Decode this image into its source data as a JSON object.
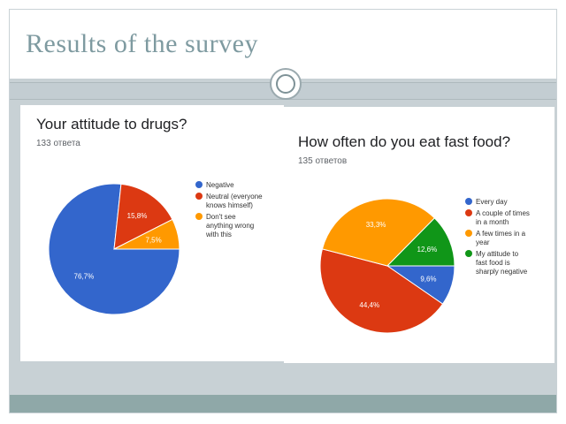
{
  "slide": {
    "title": "Results of the survey"
  },
  "chart_data": [
    {
      "type": "pie",
      "title": "Your attitude to drugs?",
      "subtitle": "133 ответа",
      "categories": [
        "Negative",
        "Neutral (everyone knows himself)",
        "Don't see anything wrong with this"
      ],
      "legend_lines": [
        [
          "Negative"
        ],
        [
          "Neutral (everyone",
          "knows himself)"
        ],
        [
          "Don't see",
          "anything wrong",
          "with this"
        ]
      ],
      "values": [
        76.7,
        15.8,
        7.5
      ],
      "labels": [
        "76,7%",
        "15,8%",
        "7,5%"
      ],
      "colors": [
        "#3366cc",
        "#dc3912",
        "#ff9900"
      ],
      "legend": "right"
    },
    {
      "type": "pie",
      "title": "How often do you eat fast food?",
      "subtitle": "135 ответов",
      "categories": [
        "Every day",
        "A couple of times in a month",
        "A few times in a year",
        "My attitude to fast food is sharply negative"
      ],
      "legend_lines": [
        [
          "Every day"
        ],
        [
          "A couple of times",
          "in a month"
        ],
        [
          "A few times in a",
          "year"
        ],
        [
          "My attitude to",
          "fast food is",
          "sharply negative"
        ]
      ],
      "values": [
        9.6,
        44.4,
        33.3,
        12.6
      ],
      "labels": [
        "9,6%",
        "44,4%",
        "33,3%",
        "12,6%"
      ],
      "colors": [
        "#3366cc",
        "#dc3912",
        "#ff9900",
        "#109618"
      ],
      "legend": "right"
    }
  ]
}
